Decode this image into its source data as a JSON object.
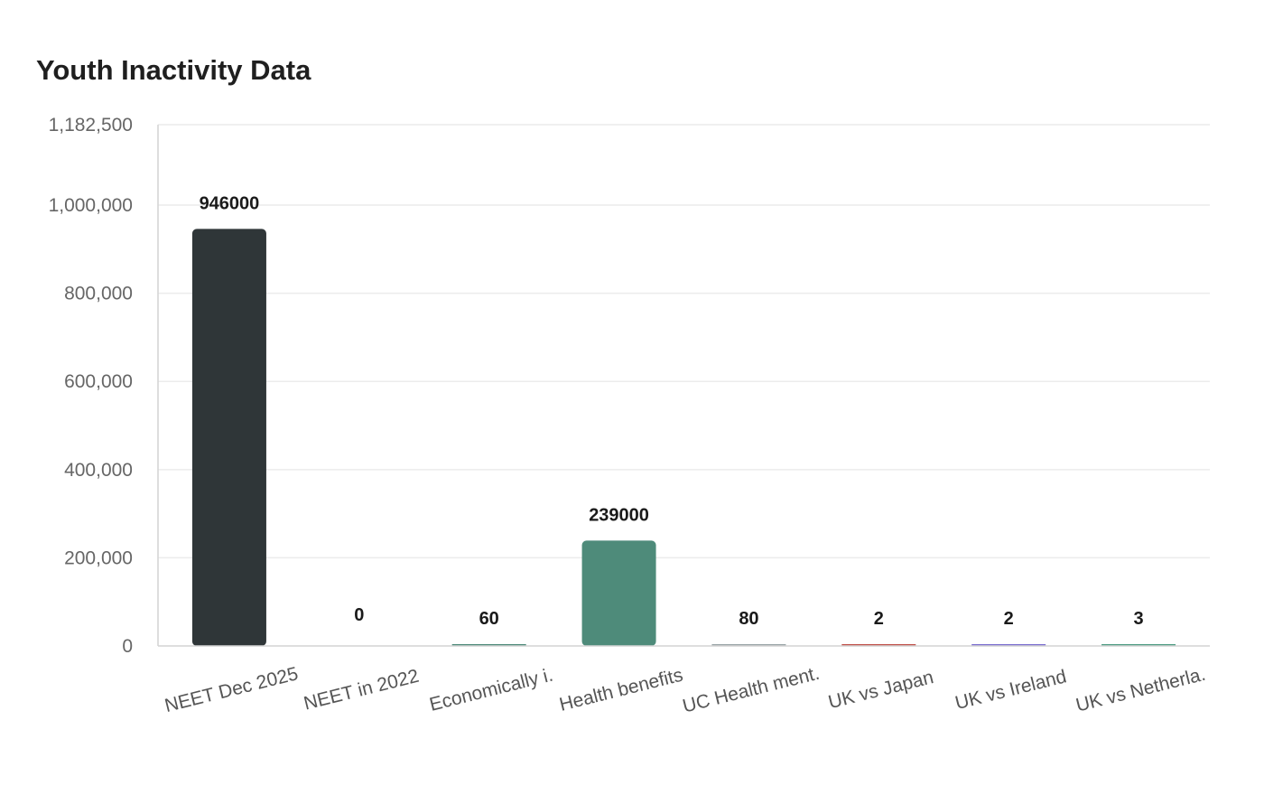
{
  "chart_data": {
    "type": "bar",
    "title": "Youth Inactivity Data",
    "xlabel": "",
    "ylabel": "",
    "ylim": [
      0,
      1182500
    ],
    "yticks": [
      0,
      200000,
      400000,
      600000,
      800000,
      1000000,
      1182500
    ],
    "ytick_labels": [
      "0",
      "200,000",
      "400,000",
      "600,000",
      "800,000",
      "1,000,000",
      "1,182,500"
    ],
    "grid": true,
    "legend": "none",
    "categories": [
      "NEET Dec 2025",
      "NEET in 2022",
      "Economically i.",
      "Health benefits",
      "UC Health ment.",
      "UK vs Japan",
      "UK vs Ireland",
      "UK vs Netherla."
    ],
    "values": [
      946000,
      0,
      60,
      239000,
      80,
      2,
      2,
      3
    ],
    "value_labels": [
      "946000",
      "0",
      "60",
      "239000",
      "80",
      "2",
      "2",
      "3"
    ],
    "colors": [
      "#2f3638",
      "#2f3638",
      "#4e8b7a",
      "#4e8b7a",
      "#9aa5a8",
      "#c0524b",
      "#7b6fd0",
      "#4e9d83"
    ]
  }
}
